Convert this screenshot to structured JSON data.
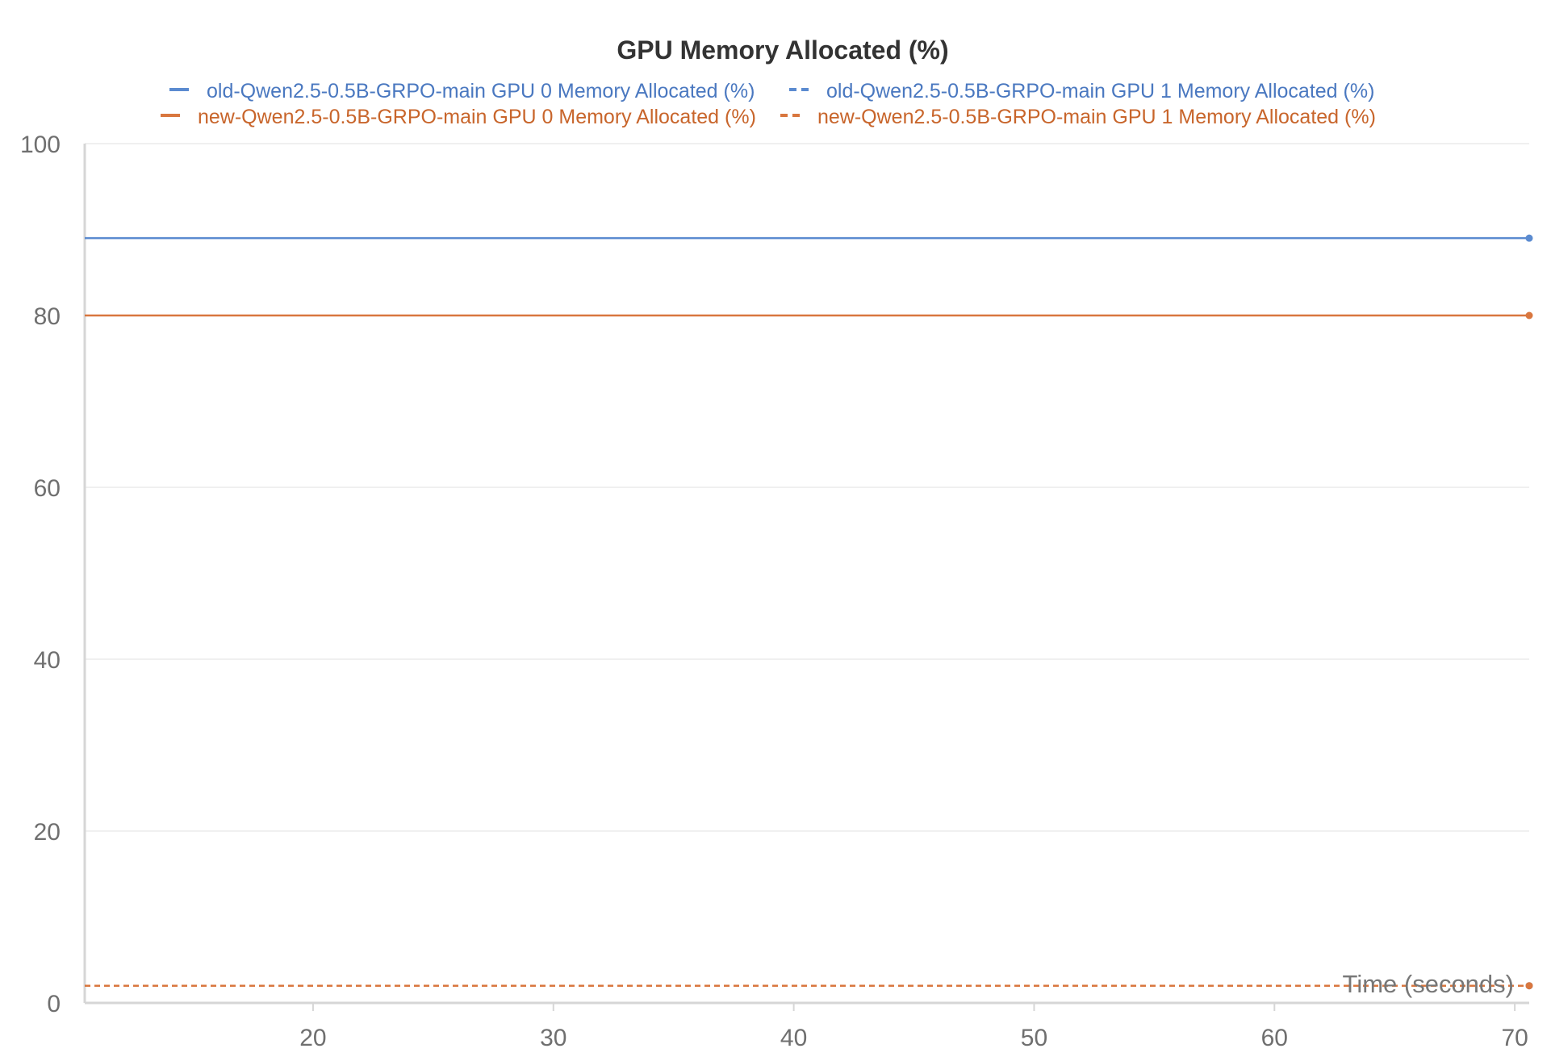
{
  "chart_data": {
    "type": "line",
    "title": "GPU Memory Allocated (%)",
    "xlabel": "Time (seconds)",
    "ylabel": "",
    "xlim": [
      10.5,
      70.6
    ],
    "ylim": [
      0,
      100
    ],
    "xticks": [
      20,
      30,
      40,
      50,
      60,
      70
    ],
    "yticks": [
      0,
      20,
      40,
      60,
      80,
      100
    ],
    "grid": true,
    "legend_position": "top",
    "series": [
      {
        "name": "old-Qwen2.5-0.5B-GRPO-main GPU 0 Memory Allocated (%)",
        "color": "#5b8bd0",
        "dash": "solid",
        "x": [
          10.5,
          70.6
        ],
        "y": [
          89,
          89
        ]
      },
      {
        "name": "old-Qwen2.5-0.5B-GRPO-main GPU 1 Memory Allocated (%)",
        "color": "#5b8bd0",
        "dash": "dashed",
        "x": [
          10.5,
          70.6
        ],
        "y": [
          2,
          2
        ]
      },
      {
        "name": "new-Qwen2.5-0.5B-GRPO-main GPU 0 Memory Allocated (%)",
        "color": "#d9773f",
        "dash": "solid",
        "x": [
          10.5,
          70.6
        ],
        "y": [
          80,
          80
        ]
      },
      {
        "name": "new-Qwen2.5-0.5B-GRPO-main GPU 1 Memory Allocated (%)",
        "color": "#d9773f",
        "dash": "dashed",
        "x": [
          10.5,
          70.6
        ],
        "y": [
          2,
          2
        ]
      }
    ]
  }
}
